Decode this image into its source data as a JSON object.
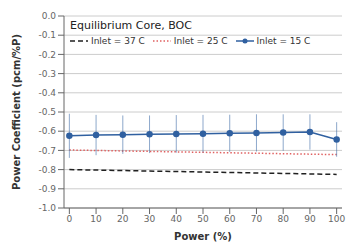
{
  "chart_data": {
    "type": "line",
    "title": "Equilibrium Core, BOC",
    "x_label": "Power (%)",
    "y_label": "Power Coefficient (pcm/%P)",
    "xlim": [
      -2,
      102
    ],
    "ylim": [
      -1.0,
      0.0
    ],
    "xticks": [
      0,
      10,
      20,
      30,
      40,
      50,
      60,
      70,
      80,
      90,
      100
    ],
    "yticks": [
      {
        "value": 0.0,
        "label": "0.0"
      },
      -0.1,
      -0.2,
      -0.3,
      -0.4,
      -0.5,
      -0.6,
      -0.7,
      -0.8,
      -0.9,
      {
        "value": -1.0,
        "label": "-1.0"
      }
    ],
    "grid": true,
    "legend": "upper left",
    "series": [
      {
        "name": "Inlet = 37 C",
        "color": "#202020",
        "line_style": "dashed",
        "x": [
          0,
          100
        ],
        "values": [
          -0.8,
          -0.825
        ]
      },
      {
        "name": "Inlet = 25 C",
        "color": "#e06060",
        "line_style": "dotted",
        "x": [
          0,
          100
        ],
        "values": [
          -0.698,
          -0.722
        ]
      },
      {
        "name": "Inlet = 15 C",
        "color": "#3060a0",
        "line_style": "solid",
        "marker": "circle",
        "x": [
          0,
          10,
          20,
          30,
          40,
          50,
          60,
          70,
          80,
          90,
          100
        ],
        "values": [
          -0.624,
          -0.62,
          -0.618,
          -0.616,
          -0.614,
          -0.613,
          -0.611,
          -0.609,
          -0.607,
          -0.604,
          -0.643
        ],
        "errors": [
          0.115,
          0.105,
          0.1,
          0.098,
          0.098,
          0.098,
          0.097,
          0.097,
          0.095,
          0.092,
          0.09
        ]
      }
    ]
  }
}
